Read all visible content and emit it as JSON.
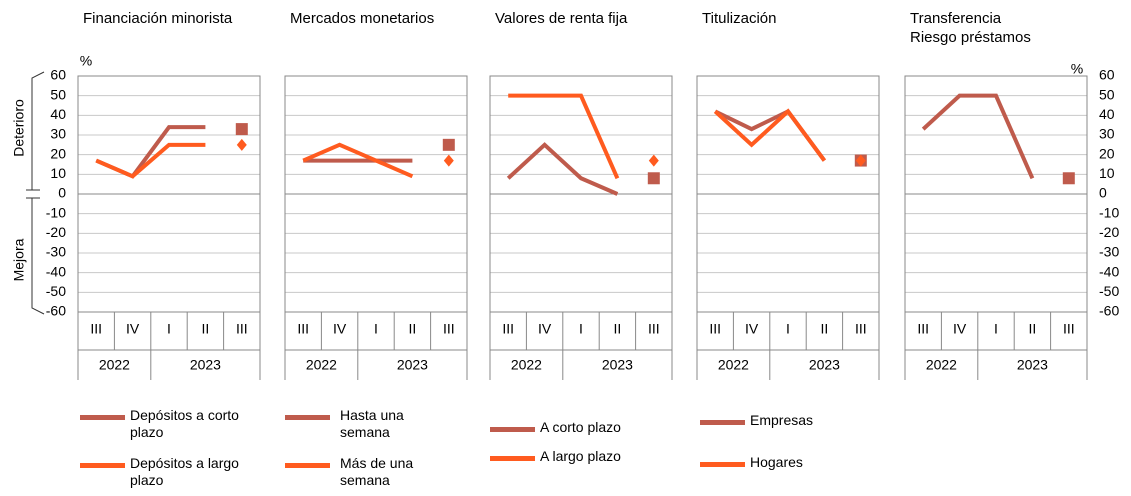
{
  "chart_data": [
    {
      "type": "line",
      "title": "Financiación minorista",
      "y_label": "%",
      "annotations": [
        "Deterioro",
        "Mejora"
      ],
      "categories": [
        "III",
        "IV",
        "I",
        "II",
        "III"
      ],
      "year_groups": [
        {
          "label": "2022",
          "count": 2
        },
        {
          "label": "2023",
          "count": 3
        }
      ],
      "ylim": [
        -60,
        60
      ],
      "yticks": [
        -60,
        -50,
        -40,
        -30,
        -20,
        -10,
        0,
        10,
        20,
        30,
        40,
        50,
        60
      ],
      "grid": true,
      "series": [
        {
          "name": "Depósitos a corto plazo",
          "color": "#bf5b4c",
          "values": [
            17,
            9,
            34,
            34,
            33
          ]
        },
        {
          "name": "Depósitos a largo plazo",
          "color": "#ff5b1f",
          "values": [
            17,
            9,
            25,
            25,
            25
          ]
        }
      ]
    },
    {
      "type": "line",
      "title": "Mercados monetarios",
      "categories": [
        "III",
        "IV",
        "I",
        "II",
        "III"
      ],
      "year_groups": [
        {
          "label": "2022",
          "count": 2
        },
        {
          "label": "2023",
          "count": 3
        }
      ],
      "ylim": [
        -60,
        60
      ],
      "yticks": [
        -60,
        -50,
        -40,
        -30,
        -20,
        -10,
        0,
        10,
        20,
        30,
        40,
        50,
        60
      ],
      "grid": true,
      "series": [
        {
          "name": "Hasta una semana",
          "color": "#bf5b4c",
          "values": [
            17,
            17,
            17,
            17,
            25
          ]
        },
        {
          "name": "Más de una semana",
          "color": "#ff5b1f",
          "values": [
            17,
            25,
            17,
            9,
            17
          ]
        }
      ]
    },
    {
      "type": "line",
      "title": "Valores de renta fija",
      "categories": [
        "III",
        "IV",
        "I",
        "II",
        "III"
      ],
      "year_groups": [
        {
          "label": "2022",
          "count": 2
        },
        {
          "label": "2023",
          "count": 3
        }
      ],
      "ylim": [
        -60,
        60
      ],
      "yticks": [
        -60,
        -50,
        -40,
        -30,
        -20,
        -10,
        0,
        10,
        20,
        30,
        40,
        50,
        60
      ],
      "grid": true,
      "series": [
        {
          "name": "A corto plazo",
          "color": "#bf5b4c",
          "values": [
            8,
            25,
            8,
            0,
            8
          ]
        },
        {
          "name": "A largo plazo",
          "color": "#ff5b1f",
          "values": [
            50,
            50,
            50,
            8,
            17
          ]
        }
      ]
    },
    {
      "type": "line",
      "title": "Titulización",
      "categories": [
        "III",
        "IV",
        "I",
        "II",
        "III"
      ],
      "year_groups": [
        {
          "label": "2022",
          "count": 2
        },
        {
          "label": "2023",
          "count": 3
        }
      ],
      "ylim": [
        -60,
        60
      ],
      "yticks": [
        -60,
        -50,
        -40,
        -30,
        -20,
        -10,
        0,
        10,
        20,
        30,
        40,
        50,
        60
      ],
      "grid": true,
      "series": [
        {
          "name": "Empresas",
          "color": "#bf5b4c",
          "values": [
            42,
            33,
            42,
            17,
            17
          ]
        },
        {
          "name": "Hogares",
          "color": "#ff5b1f",
          "values": [
            42,
            25,
            42,
            17,
            17
          ]
        }
      ]
    },
    {
      "type": "line",
      "title": "Transferencia Riesgo préstamos",
      "y_label": "%",
      "categories": [
        "III",
        "IV",
        "I",
        "II",
        "III"
      ],
      "year_groups": [
        {
          "label": "2022",
          "count": 2
        },
        {
          "label": "2023",
          "count": 3
        }
      ],
      "ylim": [
        -60,
        60
      ],
      "yticks": [
        -60,
        -50,
        -40,
        -30,
        -20,
        -10,
        0,
        10,
        20,
        30,
        40,
        50,
        60
      ],
      "grid": true,
      "series": [
        {
          "color": "#bf5b4c",
          "values": [
            33,
            50,
            50,
            8,
            8
          ]
        }
      ]
    }
  ]
}
